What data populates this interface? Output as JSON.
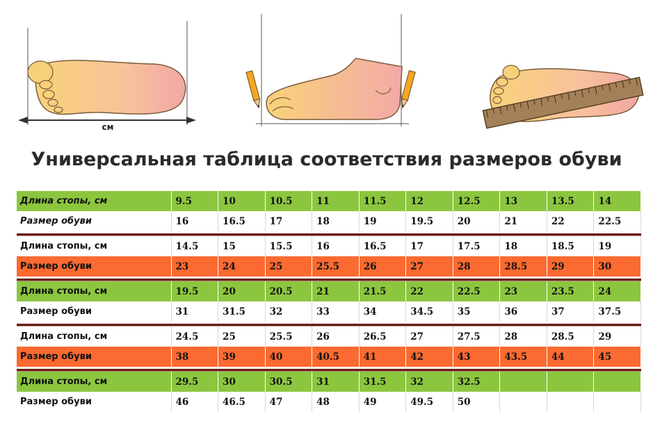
{
  "title": "Универсальная таблица соответствия размеров обуви",
  "illustration": {
    "measure_label": "см"
  },
  "table": {
    "blocks": [
      {
        "length_label": "Длина стопы, см",
        "size_label": "Размер обуви",
        "lengths": [
          "9.5",
          "10",
          "10.5",
          "11",
          "11.5",
          "12",
          "12.5",
          "13",
          "13.5",
          "14"
        ],
        "sizes": [
          "16",
          "16.5",
          "17",
          "18",
          "19",
          "19.5",
          "20",
          "21",
          "22",
          "22.5"
        ],
        "top_row": "length",
        "top_color": "green",
        "bottom_color": "white",
        "italic": true
      },
      {
        "length_label": "Длина стопы, см",
        "size_label": "Размер обуви",
        "lengths": [
          "14.5",
          "15",
          "15.5",
          "16",
          "16.5",
          "17",
          "17.5",
          "18",
          "18.5",
          "19"
        ],
        "sizes": [
          "23",
          "24",
          "25",
          "25.5",
          "26",
          "27",
          "28",
          "28.5",
          "29",
          "30"
        ],
        "top_row": "length",
        "top_color": "white",
        "bottom_color": "orange",
        "italic": false
      },
      {
        "length_label": "Длина стопы, см",
        "size_label": "Размер обуви",
        "lengths": [
          "19.5",
          "20",
          "20.5",
          "21",
          "21.5",
          "22",
          "22.5",
          "23",
          "23.5",
          "24"
        ],
        "sizes": [
          "31",
          "31.5",
          "32",
          "33",
          "34",
          "34.5",
          "35",
          "36",
          "37",
          "37.5"
        ],
        "top_row": "length",
        "top_color": "green",
        "bottom_color": "white",
        "italic": false
      },
      {
        "length_label": "Длина стопы, см",
        "size_label": "Размер обуви",
        "lengths": [
          "24.5",
          "25",
          "25.5",
          "26",
          "26.5",
          "27",
          "27.5",
          "28",
          "28.5",
          "29"
        ],
        "sizes": [
          "38",
          "39",
          "40",
          "40.5",
          "41",
          "42",
          "43",
          "43.5",
          "44",
          "45"
        ],
        "top_row": "length",
        "top_color": "white",
        "bottom_color": "orange",
        "italic": false
      },
      {
        "length_label": "Длина стопы, см",
        "size_label": "Размер обуви",
        "lengths": [
          "29.5",
          "30",
          "30.5",
          "31",
          "31.5",
          "32",
          "32.5",
          "",
          "",
          ""
        ],
        "sizes": [
          "46",
          "46.5",
          "47",
          "48",
          "49",
          "49.5",
          "50",
          "",
          "",
          ""
        ],
        "top_row": "length",
        "top_color": "green",
        "bottom_color": "white",
        "italic": false
      }
    ]
  },
  "colors": {
    "green": "#8cc63f",
    "orange": "#fb6a30",
    "separator": "#6b1b12"
  },
  "icons": [
    "foot-sole-measure-icon",
    "foot-side-pencils-icon",
    "foot-ruler-icon"
  ]
}
